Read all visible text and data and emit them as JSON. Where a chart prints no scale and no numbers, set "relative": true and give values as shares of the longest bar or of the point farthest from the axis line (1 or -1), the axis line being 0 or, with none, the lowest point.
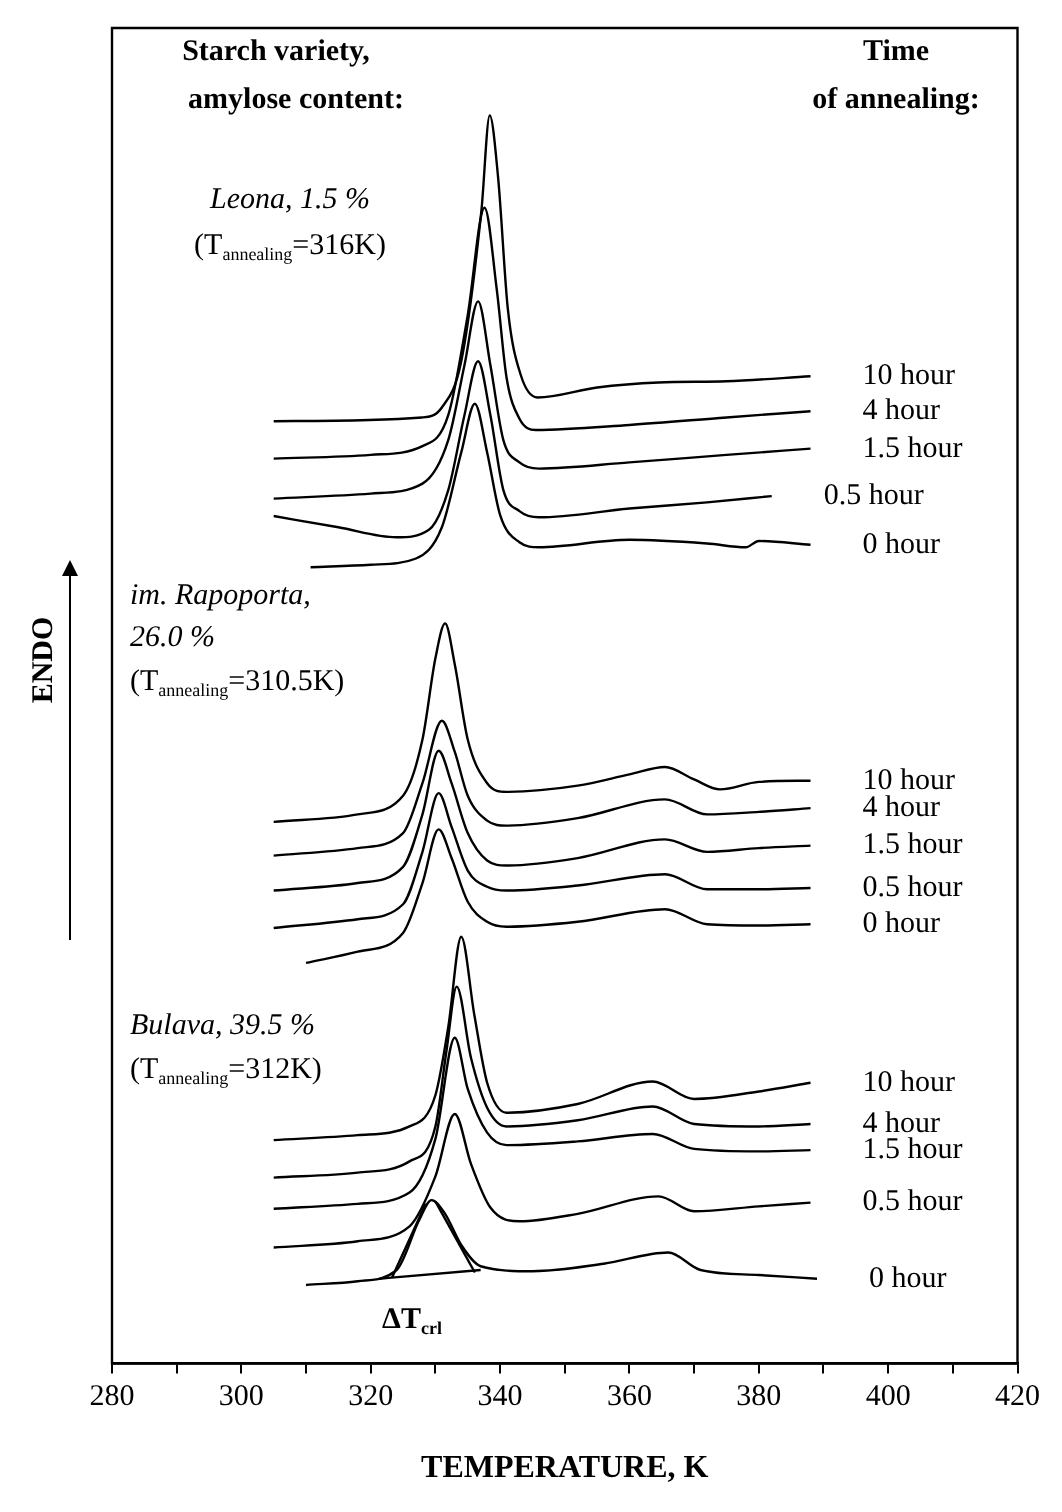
{
  "chart_data": {
    "type": "line",
    "relative": true,
    "xlabel": "TEMPERATURE, K",
    "ylabel": "ENDO",
    "legend": false,
    "marker": "none",
    "line_style": "solid",
    "tick_labels": "x",
    "xlim": [
      280,
      420
    ],
    "xticks": [
      280,
      {
        "value": 290,
        "label": null
      },
      300,
      {
        "value": 310,
        "label": null
      },
      320,
      {
        "value": 330,
        "label": null
      },
      340,
      {
        "value": 350,
        "label": null
      },
      360,
      {
        "value": 370,
        "label": null
      },
      380,
      {
        "value": 390,
        "label": null
      },
      400,
      {
        "value": 410,
        "label": null
      },
      420
    ],
    "annotations": [
      "Starch variety,",
      "amylose content:",
      "Time",
      "of annealing:",
      "Leona, 1.5 %",
      "(T$_{annealing}$=316K)",
      "im. Rapoporta,",
      "26.0 %",
      "(T$_{annealing}$=310.5K)",
      "Bulava, 39.5 %",
      "(T$_{annealing}$=312K)",
      "ΔT$_{crl}$"
    ],
    "series": [
      {
        "name": "10 hour",
        "color": "#000000",
        "x": [
          305,
          327.9,
          331,
          334,
          337.1,
          338.4,
          339.7,
          341.2,
          343.2,
          345.8,
          355,
          364.5,
          375,
          388
        ],
        "values": [
          0.755,
          0.758,
          0.766,
          0.803,
          0.923,
          1.0,
          0.95,
          0.845,
          0.792,
          0.774,
          0.782,
          0.786,
          0.787,
          0.791
        ]
      },
      {
        "name": "4 hour",
        "color": "#000000",
        "x": [
          305,
          320,
          328,
          332,
          335,
          337.6,
          339.5,
          341,
          343,
          345.5,
          360,
          375,
          388
        ],
        "values": [
          0.725,
          0.728,
          0.735,
          0.76,
          0.84,
          0.926,
          0.86,
          0.79,
          0.757,
          0.748,
          0.752,
          0.758,
          0.763
        ]
      },
      {
        "name": "1.5 hour",
        "color": "#000000",
        "x": [
          305,
          320,
          328,
          332,
          334.5,
          336.6,
          338.5,
          340.5,
          343,
          346,
          360,
          375,
          388
        ],
        "values": [
          0.693,
          0.697,
          0.705,
          0.74,
          0.8,
          0.851,
          0.8,
          0.74,
          0.722,
          0.717,
          0.722,
          0.728,
          0.733
        ]
      },
      {
        "name": "0.5 hour",
        "color": "#000000",
        "x": [
          305,
          315,
          324,
          329,
          332,
          334.5,
          336.6,
          338.5,
          340.5,
          343,
          346,
          360,
          372,
          382
        ],
        "values": [
          0.679,
          0.67,
          0.662,
          0.668,
          0.7,
          0.76,
          0.803,
          0.76,
          0.7,
          0.683,
          0.678,
          0.685,
          0.69,
          0.695
        ]
      },
      {
        "name": "0 hour",
        "color": "#000000",
        "x": [
          310.7,
          320,
          327,
          331,
          334,
          336.1,
          338,
          340,
          343,
          346,
          360,
          372,
          378,
          380,
          388
        ],
        "values": [
          0.638,
          0.64,
          0.645,
          0.67,
          0.73,
          0.769,
          0.73,
          0.68,
          0.658,
          0.654,
          0.66,
          0.657,
          0.654,
          0.659,
          0.656
        ]
      },
      {
        "name": "10 hour",
        "color": "#000000",
        "x": [
          305,
          318,
          325,
          328,
          330,
          331.5,
          333,
          335,
          338,
          341,
          352,
          360,
          365.5,
          370,
          374,
          380,
          388
        ],
        "values": [
          0.434,
          0.44,
          0.455,
          0.5,
          0.565,
          0.593,
          0.56,
          0.5,
          0.465,
          0.458,
          0.463,
          0.472,
          0.478,
          0.468,
          0.46,
          0.466,
          0.467
        ]
      },
      {
        "name": "4 hour",
        "color": "#000000",
        "x": [
          305,
          318,
          325,
          328,
          331,
          333,
          335,
          338,
          341,
          352,
          365.5,
          372,
          380,
          388
        ],
        "values": [
          0.407,
          0.413,
          0.425,
          0.465,
          0.515,
          0.49,
          0.455,
          0.435,
          0.431,
          0.437,
          0.452,
          0.44,
          0.442,
          0.445
        ]
      },
      {
        "name": "1.5 hour",
        "color": "#000000",
        "x": [
          305,
          318,
          325,
          328,
          330.5,
          332.5,
          335,
          338,
          341,
          352,
          365.5,
          372,
          380,
          388
        ],
        "values": [
          0.379,
          0.385,
          0.398,
          0.44,
          0.491,
          0.465,
          0.425,
          0.403,
          0.399,
          0.405,
          0.42,
          0.41,
          0.413,
          0.415
        ]
      },
      {
        "name": "0.5 hour",
        "color": "#000000",
        "x": [
          305,
          318,
          325,
          328,
          330.5,
          332.5,
          335,
          338,
          341,
          352,
          365.5,
          372,
          380,
          388
        ],
        "values": [
          0.349,
          0.356,
          0.368,
          0.41,
          0.457,
          0.43,
          0.395,
          0.382,
          0.379,
          0.383,
          0.392,
          0.38,
          0.38,
          0.381
        ]
      },
      {
        "name": "0 hour",
        "color": "#000000",
        "x": [
          310,
          318,
          325,
          328,
          330.5,
          332.5,
          335,
          338,
          341,
          352,
          365.5,
          372,
          380,
          388
        ],
        "values": [
          0.321,
          0.33,
          0.345,
          0.385,
          0.428,
          0.405,
          0.37,
          0.354,
          0.35,
          0.354,
          0.364,
          0.352,
          0.351,
          0.352
        ]
      },
      {
        "name": "10 hour",
        "color": "#000000",
        "x": [
          305,
          318,
          326,
          330,
          332,
          334,
          336,
          338,
          341,
          352,
          363.6,
          370,
          380,
          388
        ],
        "values": [
          0.179,
          0.183,
          0.19,
          0.215,
          0.27,
          0.342,
          0.28,
          0.225,
          0.201,
          0.208,
          0.226,
          0.212,
          0.218,
          0.225
        ]
      },
      {
        "name": "4 hour",
        "color": "#000000",
        "x": [
          305,
          318,
          326,
          330,
          331.7,
          333.3,
          335.5,
          338,
          341,
          352,
          363.6,
          370,
          380,
          388
        ],
        "values": [
          0.149,
          0.153,
          0.162,
          0.19,
          0.25,
          0.302,
          0.245,
          0.205,
          0.19,
          0.195,
          0.206,
          0.192,
          0.19,
          0.192
        ]
      },
      {
        "name": "1.5 hour",
        "color": "#000000",
        "x": [
          305,
          318,
          326,
          330,
          333,
          335,
          338,
          341,
          352,
          363.6,
          370,
          380,
          388
        ],
        "values": [
          0.124,
          0.128,
          0.137,
          0.18,
          0.261,
          0.22,
          0.185,
          0.175,
          0.178,
          0.184,
          0.172,
          0.17,
          0.171
        ]
      },
      {
        "name": "0.5 hour",
        "color": "#000000",
        "x": [
          305,
          318,
          326,
          330,
          333,
          335.5,
          338.5,
          343,
          352,
          364.5,
          370,
          380,
          388
        ],
        "values": [
          0.093,
          0.098,
          0.11,
          0.15,
          0.2,
          0.16,
          0.125,
          0.114,
          0.12,
          0.134,
          0.122,
          0.126,
          0.129
        ]
      },
      {
        "name": "0 hour",
        "color": "#000000",
        "x": [
          310,
          318,
          324,
          327.5,
          329.4,
          331.5,
          334,
          337,
          345,
          356,
          366,
          371,
          380,
          389
        ],
        "values": [
          0.063,
          0.066,
          0.075,
          0.115,
          0.131,
          0.12,
          0.095,
          0.078,
          0.074,
          0.08,
          0.089,
          0.075,
          0.071,
          0.068
        ]
      },
      {
        "type": "line",
        "color": "#000000",
        "x": [
          321.3,
          337
        ],
        "values": [
          0.068,
          0.075
        ]
      },
      {
        "type": "line",
        "color": "#000000",
        "x": [
          323.3,
          328.5
        ],
        "values": [
          0.069,
          0.128
        ]
      },
      {
        "type": "line",
        "color": "#000000",
        "x": [
          330,
          336.1
        ],
        "values": [
          0.13,
          0.073
        ]
      }
    ]
  }
}
